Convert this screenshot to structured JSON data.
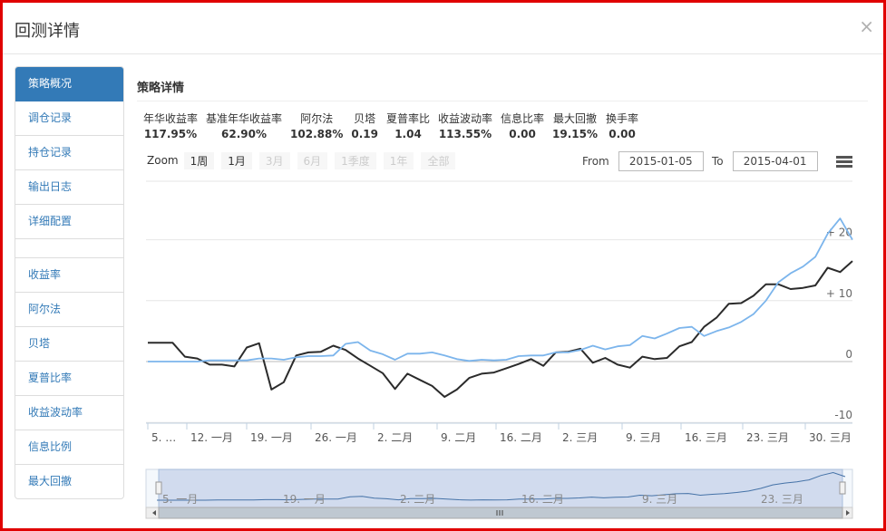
{
  "dialog": {
    "title": "回测详情",
    "close_glyph": "×"
  },
  "sidebar": {
    "items": [
      {
        "label": "策略概况",
        "active": true
      },
      {
        "label": "调仓记录"
      },
      {
        "label": "持仓记录"
      },
      {
        "label": "输出日志"
      },
      {
        "label": "详细配置"
      },
      {
        "label": ""
      },
      {
        "label": "收益率"
      },
      {
        "label": "阿尔法"
      },
      {
        "label": "贝塔"
      },
      {
        "label": "夏普比率"
      },
      {
        "label": "收益波动率"
      },
      {
        "label": "信息比例"
      },
      {
        "label": "最大回撤"
      }
    ]
  },
  "panel": {
    "title": "策略详情"
  },
  "stats": [
    {
      "label": "年华收益率",
      "value": "117.95%"
    },
    {
      "label": "基准年华收益率",
      "value": "62.90%"
    },
    {
      "label": "阿尔法",
      "value": "102.88%"
    },
    {
      "label": "贝塔",
      "value": "0.19"
    },
    {
      "label": "夏普率比",
      "value": "1.04"
    },
    {
      "label": "收益波动率",
      "value": "113.55%"
    },
    {
      "label": "信息比率",
      "value": "0.00"
    },
    {
      "label": "最大回撤",
      "value": "19.15%"
    },
    {
      "label": "换手率",
      "value": "0.00"
    }
  ],
  "zoom": {
    "label": "Zoom",
    "buttons": [
      {
        "label": "1周",
        "enabled": true
      },
      {
        "label": "1月",
        "enabled": true
      },
      {
        "label": "3月",
        "enabled": false
      },
      {
        "label": "6月",
        "enabled": false
      },
      {
        "label": "1季度",
        "enabled": false
      },
      {
        "label": "1年",
        "enabled": false
      },
      {
        "label": "全部",
        "enabled": false
      }
    ]
  },
  "range": {
    "from_label": "From",
    "from_value": "2015-01-05",
    "to_label": "To",
    "to_value": "2015-04-01"
  },
  "chart_data": {
    "type": "line",
    "y_ticks": [
      "+ 20",
      "+ 10",
      "0",
      "-10"
    ],
    "ylim": [
      -10,
      25
    ],
    "x_tick_labels": [
      "5. …",
      "12. 一月",
      "19. 一月",
      "26. 一月",
      "2. 二月",
      "9. 二月",
      "16. 二月",
      "2. 三月",
      "9. 三月",
      "16. 三月",
      "23. 三月",
      "30. 三月"
    ],
    "navigator_labels": [
      "5. 一月",
      "19. 一月",
      "2. 二月",
      "16. 二月",
      "9. 三月",
      "23. 三月"
    ],
    "series": [
      {
        "color": "#2b2b2b",
        "values": [
          3.1,
          3.1,
          3.1,
          0.8,
          0.5,
          -0.5,
          -0.5,
          -0.8,
          2.3,
          3,
          -4.6,
          -3.4,
          1,
          1.5,
          1.6,
          2.6,
          1.9,
          0.5,
          -0.7,
          -1.9,
          -4.5,
          -2,
          -3,
          -4,
          -5.8,
          -4.6,
          -2.7,
          -2,
          -1.8,
          -1.1,
          -0.4,
          0.4,
          -0.7,
          1.5,
          1.6,
          2.1,
          -0.2,
          0.6,
          -0.5,
          -1,
          0.8,
          0.4,
          0.6,
          2.5,
          3.2,
          5.7,
          7.2,
          9.5,
          9.6,
          10.8,
          12.7,
          12.7,
          11.9,
          12.1,
          12.5,
          15.4,
          14.7,
          16.5
        ]
      },
      {
        "color": "#7cb5ec",
        "values": [
          0,
          0,
          0,
          0,
          0,
          0.2,
          0.2,
          0.2,
          0.2,
          0.5,
          0.5,
          0.3,
          0.7,
          0.9,
          0.9,
          1,
          2.9,
          3.2,
          1.8,
          1.2,
          0.3,
          1.3,
          1.3,
          1.5,
          1,
          0.4,
          0.1,
          0.3,
          0.2,
          0.3,
          0.9,
          1,
          1,
          1.5,
          1.5,
          1.9,
          2.6,
          2,
          2.5,
          2.7,
          4.2,
          3.8,
          4.6,
          5.5,
          5.7,
          4.2,
          5,
          5.6,
          6.5,
          7.8,
          10,
          13,
          14.5,
          15.6,
          17.2,
          21,
          23.5,
          20
        ]
      }
    ]
  }
}
